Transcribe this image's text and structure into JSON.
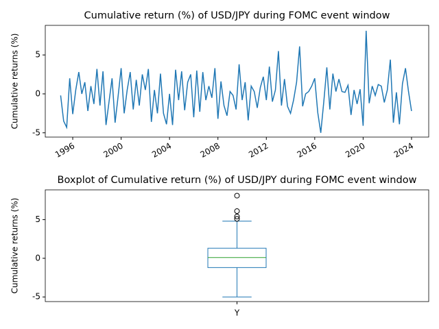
{
  "chart_data": [
    {
      "type": "line",
      "title": "Cumulative return (%) of USD/JPY during FOMC event window",
      "ylabel": "Cumulative returns (%)",
      "x": [
        1995,
        1995.25,
        1995.5,
        1995.75,
        1996,
        1996.25,
        1996.5,
        1996.75,
        1997,
        1997.25,
        1997.5,
        1997.75,
        1998,
        1998.25,
        1998.5,
        1998.75,
        1999,
        1999.25,
        1999.5,
        1999.75,
        2000,
        2000.25,
        2000.5,
        2000.75,
        2001,
        2001.25,
        2001.5,
        2001.75,
        2002,
        2002.25,
        2002.5,
        2002.75,
        2003,
        2003.25,
        2003.5,
        2003.75,
        2004,
        2004.25,
        2004.5,
        2004.75,
        2005,
        2005.25,
        2005.5,
        2005.75,
        2006,
        2006.25,
        2006.5,
        2006.75,
        2007,
        2007.25,
        2007.5,
        2007.75,
        2008,
        2008.25,
        2008.5,
        2008.75,
        2009,
        2009.25,
        2009.5,
        2009.75,
        2010,
        2010.25,
        2010.5,
        2010.75,
        2011,
        2011.25,
        2011.5,
        2011.75,
        2012,
        2012.25,
        2012.5,
        2012.75,
        2013,
        2013.25,
        2013.5,
        2013.75,
        2014,
        2014.25,
        2014.5,
        2014.75,
        2015,
        2015.25,
        2015.5,
        2015.75,
        2016,
        2016.25,
        2016.5,
        2016.75,
        2017,
        2017.25,
        2017.5,
        2017.75,
        2018,
        2018.25,
        2018.5,
        2018.75,
        2019,
        2019.25,
        2019.5,
        2019.75,
        2020,
        2020.25,
        2020.5,
        2020.75,
        2021,
        2021.25,
        2021.5,
        2021.75,
        2022,
        2022.25,
        2022.5,
        2022.75,
        2023,
        2023.25,
        2023.5,
        2023.75,
        2024
      ],
      "series": [
        {
          "color": "#1f77b4",
          "values": [
            -0.2,
            -3.5,
            -4.3,
            2.0,
            -2.6,
            0.5,
            2.8,
            0.0,
            1.5,
            -2.2,
            1.0,
            -1.3,
            3.2,
            -1.5,
            2.9,
            -4.0,
            -1.0,
            2.0,
            -3.7,
            -0.3,
            3.3,
            -2.5,
            0.5,
            2.8,
            -2.0,
            1.8,
            -1.5,
            2.5,
            0.5,
            3.2,
            -3.6,
            0.5,
            -2.5,
            2.6,
            -2.5,
            -3.9,
            0.0,
            -4.0,
            3.1,
            -0.8,
            2.9,
            -2.1,
            1.5,
            2.5,
            -3.0,
            3.0,
            -2.3,
            2.8,
            -0.8,
            1.0,
            -0.5,
            3.3,
            -3.2,
            1.6,
            -1.5,
            -2.8,
            0.3,
            -0.2,
            -2.0,
            3.8,
            -0.8,
            1.5,
            -3.4,
            1.0,
            0.3,
            -1.8,
            0.8,
            2.2,
            -0.8,
            3.5,
            -1.0,
            0.5,
            5.5,
            -1.5,
            1.9,
            -1.6,
            -2.5,
            -0.8,
            1.5,
            6.1,
            -1.6,
            0.0,
            0.3,
            1.0,
            2.0,
            -2.4,
            -5.0,
            -1.0,
            3.4,
            -2.0,
            2.6,
            0.3,
            1.9,
            0.3,
            0.2,
            1.1,
            -2.7,
            0.5,
            -1.3,
            0.6,
            -4.1,
            8.1,
            -1.2,
            1.0,
            -0.2,
            1.2,
            1.0,
            -1.1,
            0.5,
            4.4,
            -3.7,
            0.2,
            -3.9,
            1.3,
            3.3,
            0.3,
            -2.2
          ]
        }
      ],
      "xlim": [
        1993.73,
        2025.42
      ],
      "xticks": [
        1996,
        2000,
        2004,
        2008,
        2012,
        2016,
        2020,
        2024
      ],
      "ylim": [
        -5.55,
        8.8
      ],
      "yticks": [
        -5,
        0,
        5
      ]
    },
    {
      "type": "box",
      "title": "Boxplot of Cumulative return (%) of USD/JPY during FOMC event window",
      "ylabel": "Cumulative returns (%)",
      "categories": [
        "Y"
      ],
      "boxes": [
        {
          "whislo": -5.0,
          "q1": -1.2,
          "med": 0.1,
          "q3": 1.3,
          "whishi": 4.8,
          "fliers": [
            5.1,
            5.4,
            6.1,
            8.1
          ]
        }
      ],
      "color": "#1f77b4",
      "median_color": "#2ca02c",
      "ylim": [
        -5.6,
        8.85
      ],
      "yticks": [
        -5,
        0,
        5
      ]
    }
  ]
}
